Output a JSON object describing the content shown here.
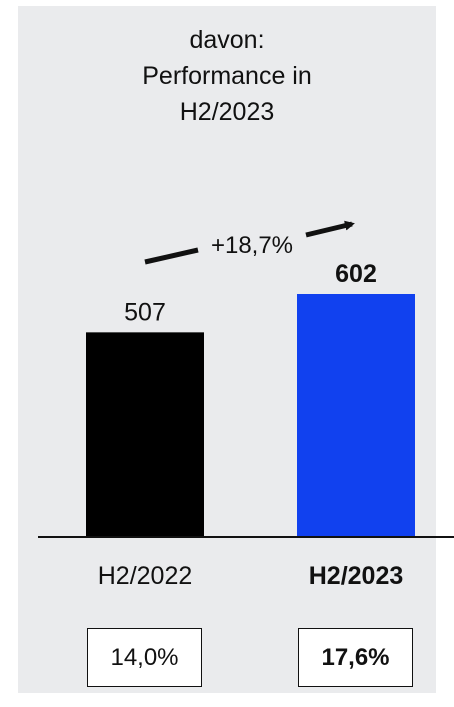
{
  "chart_data": {
    "type": "bar",
    "title_lines": [
      "davon:",
      "Performance in",
      "H2/2023"
    ],
    "categories": [
      "H2/2022",
      "H2/2023"
    ],
    "values": [
      507,
      602
    ],
    "value_labels": [
      "507",
      "602"
    ],
    "highlight_index": 1,
    "colors": [
      "#000000",
      "#1141ef"
    ],
    "change_label": "+18,7%",
    "ratios": [
      "14,0%",
      "17,6%"
    ],
    "ylim": [
      0,
      602
    ]
  }
}
